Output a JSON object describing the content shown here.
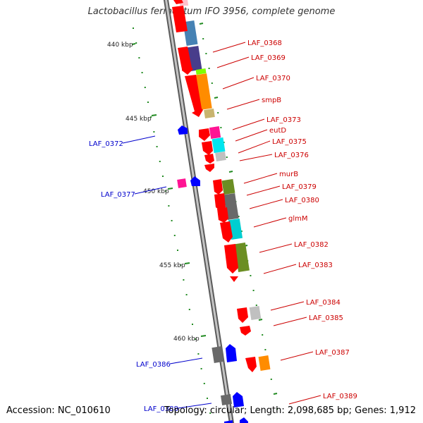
{
  "title": "Lactobacillus fermentum IFO 3956, complete genome",
  "accession_label": "Accession: NC_010610",
  "summary_label": "Topology: circular; Length: 2,098,685 bp; Genes: 1,912",
  "scale_labels": [
    "440 kbp",
    "445 kbp",
    "450 kbp",
    "455 kbp",
    "460 kbp"
  ],
  "colors": {
    "forward_gene": "#ff0000",
    "reverse_gene": "#0000ff",
    "forward_label": "#cc0000",
    "reverse_label": "#0000cc",
    "tick": "#228b22",
    "backbone": "#9a9a9a",
    "cog_blue": "#4682b4",
    "cog_purple": "#483d8b",
    "cog_orange": "#ff8c00",
    "cog_cyan": "#00ced1",
    "cog_olive": "#6b8e23",
    "cog_grey": "#696969",
    "cog_pink": "#ff1493",
    "cog_tan": "#c8b46e",
    "cog_lightgrey": "#c0c0c0",
    "cog_green": "#7fff00"
  },
  "forward_labels": [
    "LAF_0368",
    "LAF_0369",
    "LAF_0370",
    "smpB",
    "LAF_0373",
    "eutD",
    "LAF_0375",
    "LAF_0376",
    "murB",
    "LAF_0379",
    "LAF_0380",
    "glmM",
    "LAF_0382",
    "LAF_0383",
    "LAF_0384",
    "LAF_0385",
    "LAF_0387",
    "LAF_0389"
  ],
  "reverse_labels": [
    "LAF_0372",
    "LAF_0377",
    "LAF_0386",
    "LAF_0388"
  ]
}
